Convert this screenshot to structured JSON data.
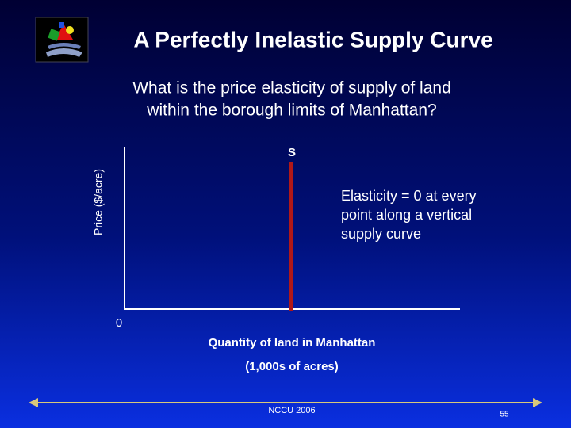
{
  "header": {
    "title": "A Perfectly Inelastic Supply Curve"
  },
  "question": {
    "lines": [
      "What is the price elasticity of supply of land",
      "within the borough limits of Manhattan?"
    ]
  },
  "graph": {
    "supply_label": "S",
    "y_axis_label": "Price ($/acre)",
    "origin_label": "0",
    "annotation": [
      "Elasticity = 0 at every",
      "point along a vertical",
      "supply curve"
    ],
    "x_axis_label": [
      "Quantity of land in Manhattan",
      "(1,000s of acres)"
    ]
  },
  "footer": {
    "text": "NCCU 2006",
    "page_number": "55"
  }
}
